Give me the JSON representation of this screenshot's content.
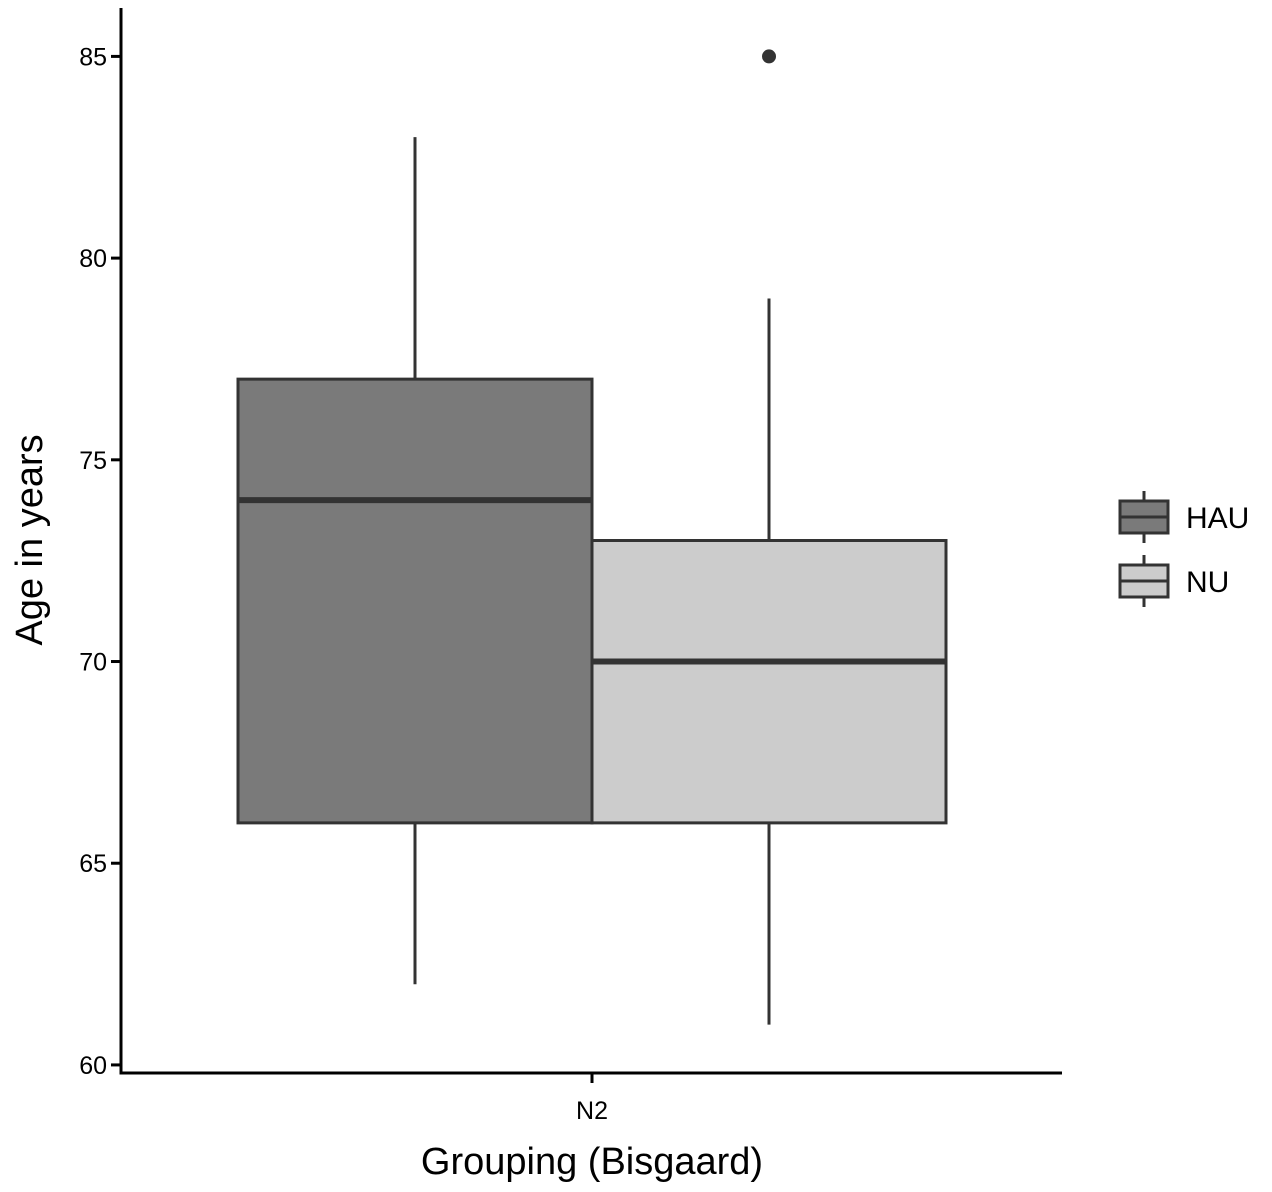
{
  "chart_data": {
    "type": "box",
    "xlabel": "Grouping (Bisgaard)",
    "ylabel": "Age in years",
    "categories": [
      "N2"
    ],
    "ylim": [
      59.8,
      86.2
    ],
    "yticks": [
      60,
      65,
      70,
      75,
      80,
      85
    ],
    "grid": false,
    "legend": {
      "position": "right",
      "entries": [
        "HAU",
        "NU"
      ]
    },
    "series": [
      {
        "name": "HAU",
        "color": "#7a7a7a",
        "whisker_low": 62,
        "q1": 66,
        "median": 74,
        "q3": 77,
        "whisker_high": 83,
        "outliers": []
      },
      {
        "name": "NU",
        "color": "#cccccc",
        "whisker_low": 61,
        "q1": 66,
        "median": 70,
        "q3": 73,
        "whisker_high": 79,
        "outliers": [
          85
        ]
      }
    ]
  }
}
